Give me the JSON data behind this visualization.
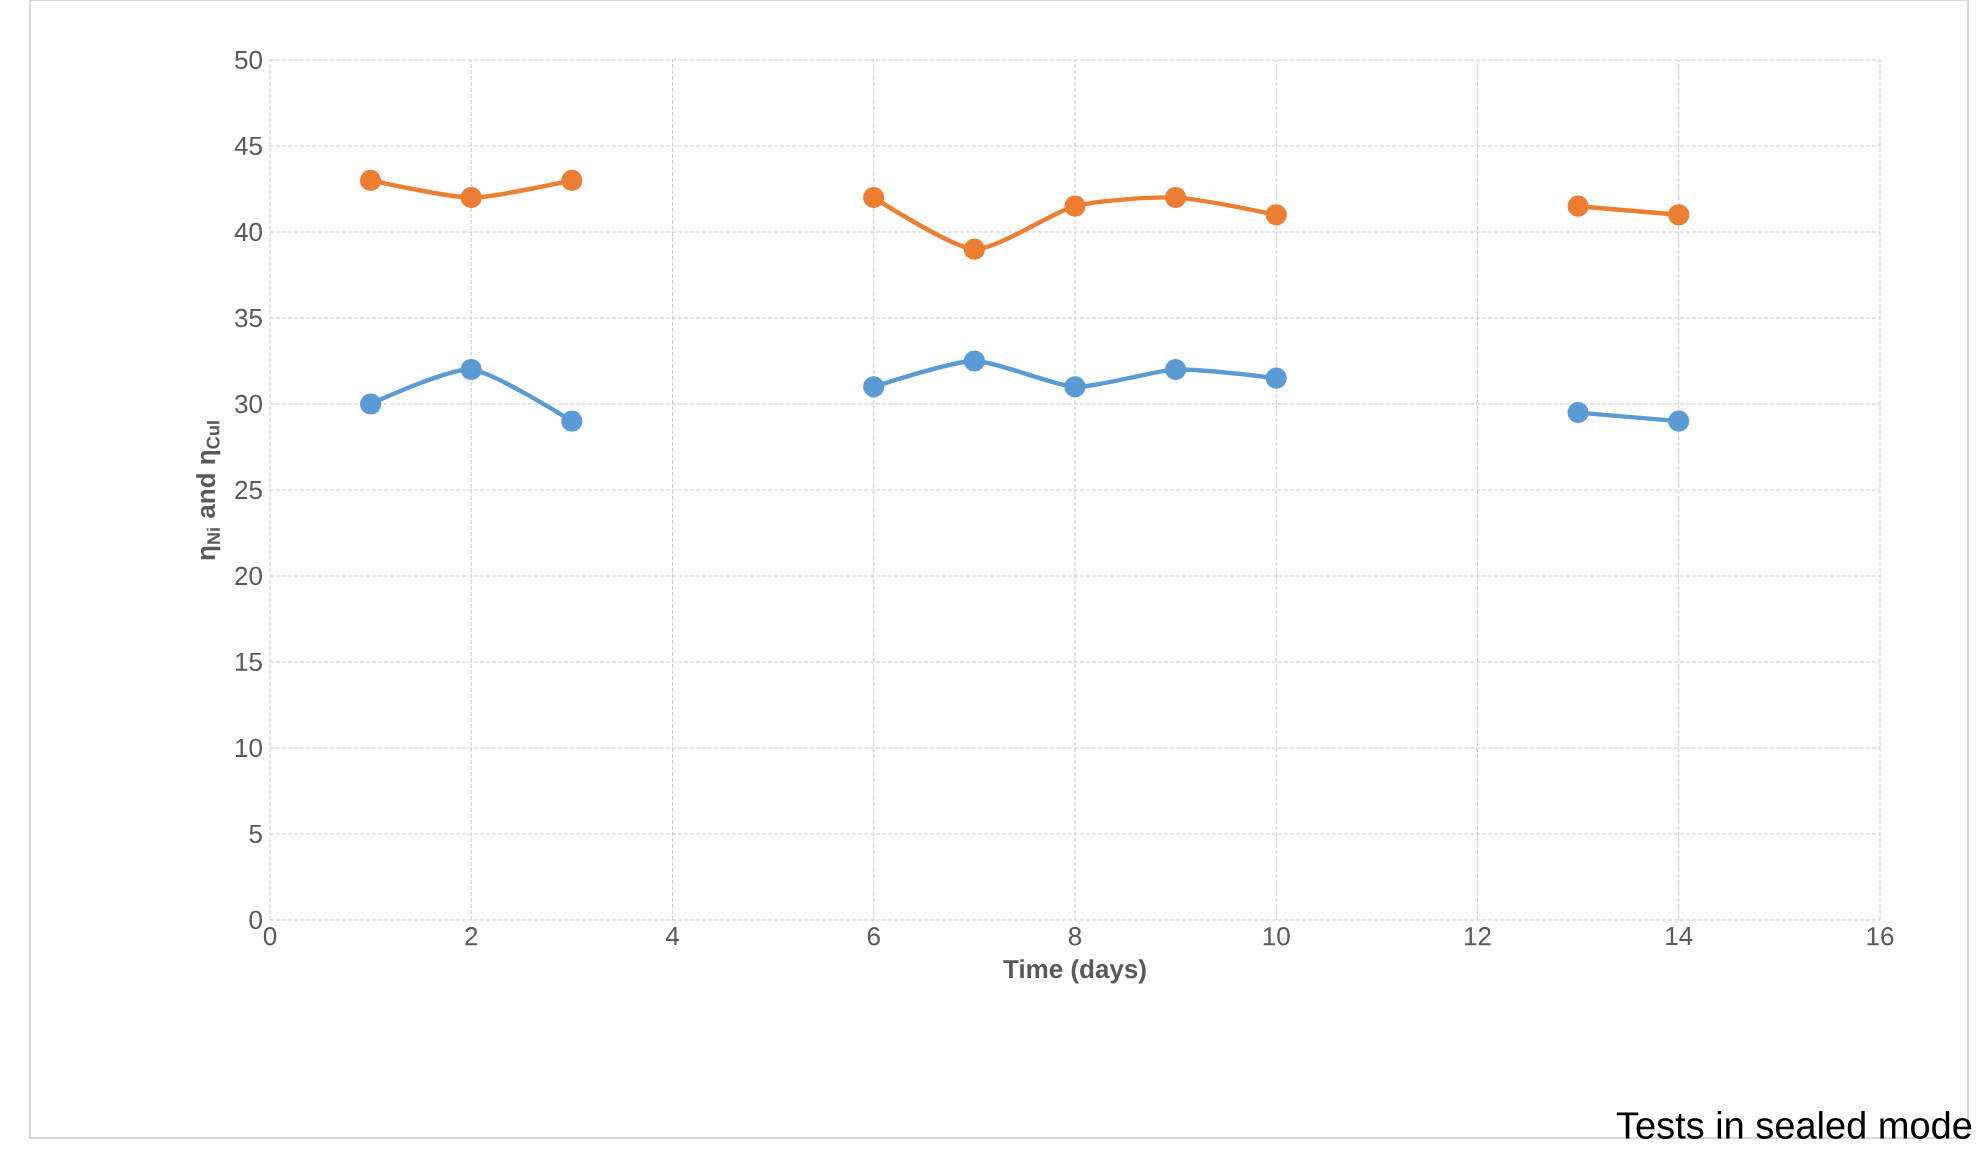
{
  "chart_data": {
    "type": "line",
    "x": [
      1,
      2,
      3,
      4,
      6,
      7,
      8,
      9,
      10,
      11,
      13,
      14
    ],
    "series": [
      {
        "color": "#5b9bd5",
        "values": [
          30,
          32,
          29,
          null,
          31,
          32.5,
          31,
          32,
          31.5,
          null,
          29.5,
          29
        ]
      },
      {
        "color": "#ed7d31",
        "values": [
          43,
          42,
          43,
          null,
          42,
          39,
          41.5,
          42,
          41,
          null,
          41.5,
          41
        ]
      }
    ],
    "xlabel": "Time (days)",
    "ylabel": "η$_{Ni}$ and η$_{CuI}$",
    "annotations": [
      "Tests in sealed mode"
    ],
    "xlim": [
      0,
      16
    ],
    "xticks": [
      0,
      2,
      4,
      6,
      8,
      10,
      12,
      14,
      16
    ],
    "ylim": [
      0,
      50
    ],
    "yticks": [
      0,
      5,
      10,
      15,
      20,
      25,
      30,
      35,
      40,
      45,
      50
    ],
    "grid": true,
    "marker": "circle",
    "line_style": "solid"
  }
}
